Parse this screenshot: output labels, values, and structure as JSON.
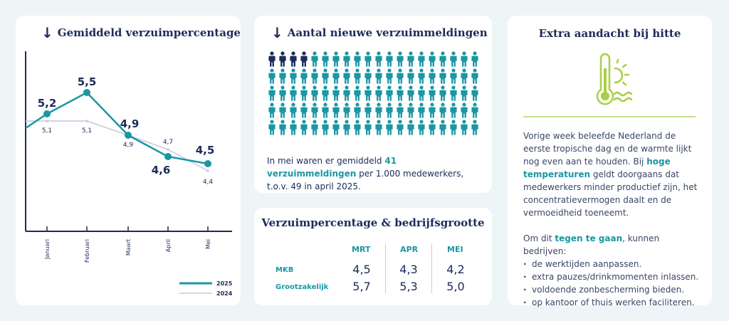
{
  "chart_card": {
    "title": "Gemiddeld verzuimpercentage",
    "icon": "arrow-down-icon"
  },
  "chart_data": {
    "type": "line",
    "categories": [
      "Januari",
      "Februari",
      "Maart",
      "April",
      "Mei"
    ],
    "series": [
      {
        "name": "2025",
        "values": [
          5.2,
          5.5,
          4.9,
          4.6,
          4.5
        ],
        "color": "#1a97a3"
      },
      {
        "name": "2024",
        "values": [
          5.1,
          5.1,
          4.9,
          4.7,
          4.4
        ],
        "color": "#c4c9dd"
      }
    ],
    "legend_position": "bottom-right",
    "grid": false
  },
  "people_card": {
    "title": "Aantal nieuwe verzuimmeldingen",
    "icon": "arrow-down-icon",
    "total": 100,
    "highlighted": 4,
    "highlight_color": "#1c2b5a",
    "base_color": "#1a97a3",
    "text_before": "In mei waren er gemiddeld ",
    "text_highlight": "41 verzuimmeldingen",
    "text_after": " per 1.000 medewerkers, t.o.v. 49 in april 2025."
  },
  "table_card": {
    "title": "Verzuimpercentage & bedrijfsgrootte",
    "columns": [
      "MRT",
      "APR",
      "MEI"
    ],
    "rows": [
      {
        "label": "MKB",
        "values": [
          "4,5",
          "4,3",
          "4,2"
        ]
      },
      {
        "label": "Grootzakelijk",
        "values": [
          "5,7",
          "5,3",
          "5,0"
        ]
      }
    ]
  },
  "heat_card": {
    "title": "Extra aandacht bij hitte",
    "icon": "thermometer-sun-icon",
    "p1_a": "Vorige week beleefde Nederland de eerste tropische dag en de warmte lijkt nog even aan te houden. Bij ",
    "p1_hl": "hoge temperaturen",
    "p1_b": " geldt doorgaans dat medewerkers minder productief zijn, het concentratievermogen daalt en de vermoeidheid toeneemt.",
    "p2_a": "Om dit ",
    "p2_hl": "tegen te gaan",
    "p2_b": ", kunnen bedrijven:",
    "bullets": [
      "de werktijden aanpassen.",
      "extra pauzes/drinkmomenten inlassen.",
      "voldoende zonbescherming bieden.",
      "op kantoor of thuis werken faciliteren."
    ]
  }
}
